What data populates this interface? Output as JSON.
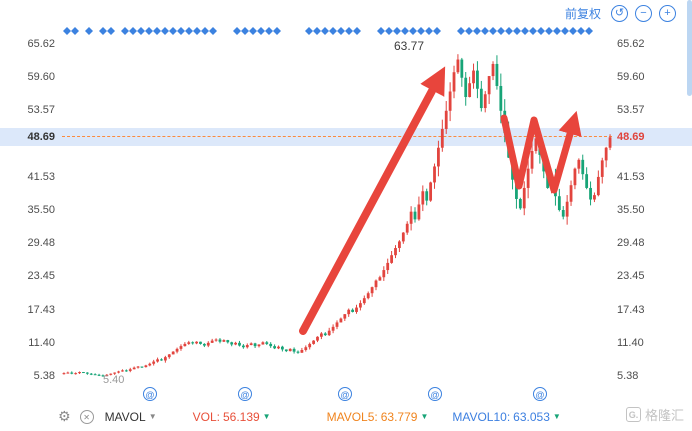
{
  "window": {
    "adjust_mode": "前复权"
  },
  "top_controls": {
    "buttons": [
      {
        "name": "reset-zoom",
        "glyph": "↺"
      },
      {
        "name": "zoom-out",
        "glyph": "−"
      },
      {
        "name": "zoom-in",
        "glyph": "+"
      }
    ]
  },
  "annotations": {
    "peak": "63.77",
    "low": "5.40"
  },
  "price_axis": {
    "current_price": "48.69"
  },
  "bottom_bar": {
    "gear_glyph": "⚙",
    "close_glyph": "✕",
    "indicator": "MAVOL",
    "caret": "▼",
    "vol_label": "VOL:",
    "vol_value": "56.139",
    "mavol5_label": "MAVOL5:",
    "mavol5_value": "63.779",
    "mavol10_label": "MAVOL10:",
    "mavol10_value": "63.053",
    "value_arrow": "▼"
  },
  "watermark": {
    "logo": "G.",
    "brand": "格隆汇"
  },
  "colors": {
    "accent_blue": "#3c82e0",
    "candle_up": "#e2443e",
    "candle_down": "#17a477",
    "price_line": "#fb8a3d",
    "band_bg": "#dce8fa",
    "current_price_text": "#e0443c",
    "vol_red": "#e8503a",
    "mavol5_orange": "#f0841e",
    "mavol10_blue": "#3c7fe0",
    "arrow_red": "#e8453c"
  },
  "chart_data": {
    "type": "candlestick",
    "title": "",
    "xlabel": "",
    "ylabel": "price",
    "ylim": [
      5.38,
      65.62
    ],
    "y_ticks": [
      5.38,
      11.4,
      17.43,
      23.45,
      29.48,
      35.5,
      41.53,
      53.57,
      59.6,
      65.62
    ],
    "y_tick_labels": [
      "5.38",
      "11.40",
      "17.43",
      "23.45",
      "29.48",
      "35.50",
      "41.53",
      "53.57",
      "59.60",
      "65.62"
    ],
    "current_price": 48.69,
    "peak_high": 63.77,
    "period_low": 5.4,
    "closes": [
      5.9,
      6.0,
      5.8,
      5.9,
      6.1,
      6.0,
      5.8,
      5.7,
      5.6,
      5.5,
      5.4,
      5.6,
      5.8,
      6.0,
      6.2,
      6.4,
      6.3,
      6.6,
      6.9,
      7.1,
      7.0,
      7.3,
      7.6,
      8.0,
      8.4,
      8.2,
      8.8,
      9.3,
      9.8,
      10.3,
      10.8,
      11.2,
      11.5,
      11.3,
      11.6,
      11.2,
      10.9,
      11.4,
      11.8,
      12.0,
      11.6,
      11.9,
      11.5,
      11.1,
      11.4,
      10.9,
      10.6,
      11.0,
      11.3,
      10.8,
      11.1,
      11.5,
      11.2,
      10.8,
      10.4,
      10.7,
      10.2,
      9.9,
      10.3,
      9.8,
      9.6,
      10.1,
      10.6,
      11.2,
      11.8,
      12.5,
      13.1,
      12.8,
      13.6,
      14.3,
      15.1,
      15.8,
      16.6,
      17.4,
      17.0,
      17.8,
      18.6,
      19.5,
      20.4,
      21.5,
      22.7,
      23.3,
      24.6,
      25.9,
      27.3,
      28.6,
      29.8,
      31.4,
      33.0,
      35.2,
      33.8,
      36.5,
      38.9,
      37.2,
      40.5,
      43.4,
      46.8,
      50.2,
      53.5,
      57.0,
      60.5,
      62.8,
      59.5,
      56.0,
      58.5,
      60.8,
      57.5,
      54.0,
      56.5,
      59.8,
      62.0,
      58.0,
      53.5,
      49.5,
      45.0,
      41.0,
      37.5,
      35.8,
      39.5,
      43.0,
      46.2,
      48.5,
      45.5,
      42.5,
      39.5,
      41.5,
      38.0,
      35.5,
      34.3,
      37.0,
      40.0,
      43.0,
      44.6,
      42.0,
      39.5,
      37.4,
      38.2,
      41.5,
      44.5,
      46.8,
      48.69
    ],
    "diamond_marker_x": [
      67,
      75,
      89,
      103,
      111,
      125,
      133,
      141,
      149,
      157,
      165,
      173,
      181,
      189,
      197,
      205,
      213,
      237,
      245,
      253,
      261,
      269,
      277,
      309,
      317,
      325,
      333,
      341,
      349,
      357,
      381,
      389,
      397,
      405,
      413,
      421,
      429,
      437,
      461,
      469,
      477,
      485,
      493,
      501,
      509,
      517,
      525,
      533,
      541,
      549,
      557,
      565,
      573,
      581,
      589
    ],
    "event_marker_x": [
      150,
      245,
      345,
      435,
      540
    ],
    "legend_position": "none",
    "grid": false
  }
}
